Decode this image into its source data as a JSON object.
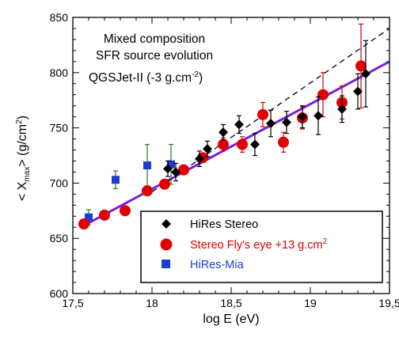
{
  "chart_data": {
    "type": "scatter",
    "xlabel": "log E (eV)",
    "ylabel_main": "< X",
    "ylabel_sub": "max",
    "ylabel_unit": "> (g/cm",
    "ylabel_sup": "2",
    "ylabel_close": ")",
    "xlim": [
      17.5,
      19.5
    ],
    "ylim": [
      600,
      850
    ],
    "xticks": [
      "17,5",
      "18",
      "18,5",
      "19",
      "19,5"
    ],
    "yticks": [
      "600",
      "650",
      "700",
      "750",
      "800",
      "850"
    ],
    "annotations": {
      "line1": "Mixed composition",
      "line2": "SFR source evolution",
      "line3_main": "QGSJet-II (-3 g.cm",
      "line3_sup": "-2",
      "line3_close": ")"
    },
    "legend": [
      {
        "label": "HiRes Stereo",
        "color": "#000000",
        "marker": "diamond"
      },
      {
        "label": "Stereo Fly's eye +13 g.cm",
        "label_sup": "2",
        "color": "#ff0000",
        "marker": "circle"
      },
      {
        "label": "HiRes-Mia",
        "color": "#0000ff",
        "marker": "square"
      }
    ],
    "legend_placement": "bottom-right",
    "colors": {
      "hires_stereo": "#000000",
      "flys_eye": "#e00000",
      "flys_eye_bar": "#cc0000",
      "hires_mia": "#1a3fd0",
      "hires_mia_bar": "#2a7a2a",
      "model_line": "#7a1fd6",
      "dashed_line": "#000000"
    },
    "series": [
      {
        "name": "HiRes Stereo",
        "marker": "diamond",
        "points": [
          {
            "x": 18.1,
            "y": 713,
            "err": 7
          },
          {
            "x": 18.15,
            "y": 710,
            "err": 8
          },
          {
            "x": 18.3,
            "y": 722,
            "err": 7
          },
          {
            "x": 18.35,
            "y": 731,
            "err": 7
          },
          {
            "x": 18.45,
            "y": 746,
            "err": 7
          },
          {
            "x": 18.55,
            "y": 753,
            "err": 8
          },
          {
            "x": 18.65,
            "y": 735,
            "err": 10
          },
          {
            "x": 18.75,
            "y": 754,
            "err": 12
          },
          {
            "x": 18.85,
            "y": 755,
            "err": 10
          },
          {
            "x": 18.95,
            "y": 760,
            "err": 10
          },
          {
            "x": 19.05,
            "y": 761,
            "err": 17
          },
          {
            "x": 19.2,
            "y": 767,
            "err": 12
          },
          {
            "x": 19.3,
            "y": 783,
            "err": 16
          },
          {
            "x": 19.35,
            "y": 799,
            "err": 30
          }
        ]
      },
      {
        "name": "Stereo Fly's eye +13 g.cm",
        "marker": "circle",
        "points": [
          {
            "x": 17.57,
            "y": 663,
            "err": 3
          },
          {
            "x": 17.7,
            "y": 671,
            "err": 3
          },
          {
            "x": 17.83,
            "y": 675,
            "err": 3
          },
          {
            "x": 17.97,
            "y": 693,
            "err": 3
          },
          {
            "x": 18.08,
            "y": 699,
            "err": 3
          },
          {
            "x": 18.2,
            "y": 712,
            "err": 4
          },
          {
            "x": 18.32,
            "y": 723,
            "err": 4
          },
          {
            "x": 18.45,
            "y": 735,
            "err": 6
          },
          {
            "x": 18.57,
            "y": 735,
            "err": 7
          },
          {
            "x": 18.7,
            "y": 762,
            "err": 11
          },
          {
            "x": 18.83,
            "y": 737,
            "err": 9
          },
          {
            "x": 18.95,
            "y": 759,
            "err": 10
          },
          {
            "x": 19.08,
            "y": 780,
            "err": 20
          },
          {
            "x": 19.2,
            "y": 773,
            "err": 15
          },
          {
            "x": 19.32,
            "y": 806,
            "err": 38
          }
        ]
      },
      {
        "name": "HiRes-Mia",
        "marker": "square",
        "points": [
          {
            "x": 17.6,
            "y": 669,
            "err": 7
          },
          {
            "x": 17.77,
            "y": 703,
            "err": 8
          },
          {
            "x": 17.97,
            "y": 716,
            "err": 19
          },
          {
            "x": 18.12,
            "y": 717,
            "err": 18
          }
        ]
      }
    ],
    "lines": [
      {
        "style": "solid",
        "points": [
          [
            17.55,
            660
          ],
          [
            19.5,
            810
          ]
        ]
      },
      {
        "style": "dashed",
        "points": [
          [
            18.0,
            692
          ],
          [
            19.5,
            840
          ]
        ]
      }
    ]
  }
}
